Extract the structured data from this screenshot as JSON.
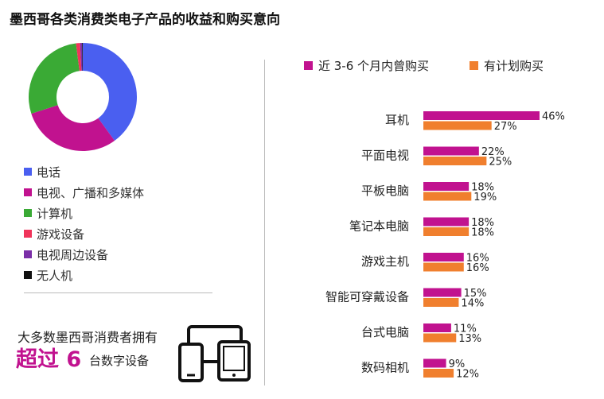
{
  "title": "墨西哥各类消费类电子产品的收益和购买意向",
  "donut": {
    "legend": [
      {
        "label": "电话",
        "color": "#4a5ff0",
        "value": 40
      },
      {
        "label": "电视、广播和多媒体",
        "color": "#c1128f",
        "value": 30
      },
      {
        "label": "计算机",
        "color": "#3aaa35",
        "value": 28
      },
      {
        "label": "游戏设备",
        "color": "#f0345a",
        "value": 1.2
      },
      {
        "label": "电视周边设备",
        "color": "#7b2fa8",
        "value": 0.6
      },
      {
        "label": "无人机",
        "color": "#111111",
        "value": 0.2
      }
    ]
  },
  "note": {
    "line1": "大多数墨西哥消费者拥有",
    "big": "超过 6",
    "line2": "台数字设备"
  },
  "chart_data": {
    "type": "bar",
    "orientation": "horizontal",
    "categories": [
      "耳机",
      "平面电视",
      "平板电脑",
      "笔记本电脑",
      "游戏主机",
      "智能可穿戴设备",
      "台式电脑",
      "数码相机"
    ],
    "series": [
      {
        "name": "近 3-6 个月内曾购买",
        "color": "#c1128f",
        "values": [
          46,
          22,
          18,
          18,
          16,
          15,
          11,
          9
        ],
        "labels": [
          "46%",
          "22%",
          "18%",
          "18%",
          "16%",
          "15%",
          "11%",
          "9%"
        ]
      },
      {
        "name": "有计划购买",
        "color": "#f07f2e",
        "values": [
          27,
          25,
          19,
          18,
          16,
          14,
          13,
          12
        ],
        "labels": [
          "27%",
          "25%",
          "19%",
          "18%",
          "16%",
          "14%",
          "13%",
          "12%"
        ]
      }
    ]
  }
}
